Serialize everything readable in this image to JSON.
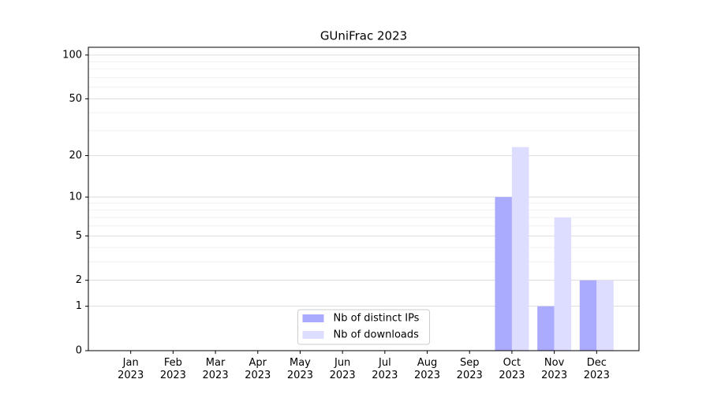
{
  "chart_data": {
    "type": "bar",
    "title": "GUniFrac 2023",
    "categories": [
      "Jan 2023",
      "Feb 2023",
      "Mar 2023",
      "Apr 2023",
      "May 2023",
      "Jun 2023",
      "Jul 2023",
      "Aug 2023",
      "Sep 2023",
      "Oct 2023",
      "Nov 2023",
      "Dec 2023"
    ],
    "series": [
      {
        "name": "Nb of distinct IPs",
        "color": "#aaaaff",
        "values": [
          0,
          0,
          0,
          0,
          0,
          0,
          0,
          0,
          0,
          10,
          1,
          2
        ]
      },
      {
        "name": "Nb of downloads",
        "color": "#ddddff",
        "values": [
          0,
          0,
          0,
          0,
          0,
          0,
          0,
          0,
          0,
          23,
          7,
          2
        ]
      }
    ],
    "yscale": "log1p",
    "ylim": [
      0,
      113
    ],
    "yticks": [
      0,
      1,
      2,
      5,
      10,
      20,
      50,
      100
    ],
    "minor_yticks": [
      3,
      4,
      6,
      7,
      8,
      9,
      30,
      40,
      60,
      70,
      80,
      90
    ],
    "grid": true,
    "legend": "lower center"
  }
}
